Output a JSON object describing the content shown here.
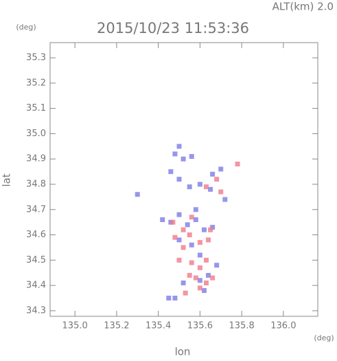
{
  "chart_data": {
    "type": "scatter",
    "header": "ALT(km)  2.0",
    "title": "2015/10/23  11:53:36",
    "y_unit": "(deg)",
    "x_unit": "(deg)",
    "y_label": "lat",
    "x_label": "lon",
    "xlim": [
      134.881,
      136.165
    ],
    "ylim": [
      34.278,
      35.36
    ],
    "xticks": [
      {
        "value": 135,
        "label": "135.0"
      },
      135.2,
      135.4,
      135.6,
      135.8,
      {
        "value": 136,
        "label": "136.0"
      }
    ],
    "yticks": [
      34.3,
      34.4,
      34.5,
      34.6,
      34.7,
      34.8,
      34.9,
      {
        "value": 35,
        "label": "35.0"
      },
      35.1,
      35.2,
      35.3
    ],
    "series": [
      {
        "color": "#7c7ce6",
        "x": [
          135.5,
          135.48,
          135.52,
          135.56,
          135.46,
          135.5,
          135.55,
          135.3,
          135.66,
          135.7,
          135.65,
          135.72,
          135.42,
          135.46,
          135.5,
          135.54,
          135.58,
          135.62,
          135.66,
          135.5,
          135.56,
          135.6,
          135.64,
          135.6,
          135.52,
          135.62,
          135.48,
          135.45,
          135.68,
          135.58,
          135.6
        ],
        "values": [
          34.95,
          34.92,
          34.9,
          34.91,
          34.85,
          34.82,
          34.79,
          34.76,
          34.84,
          34.86,
          34.78,
          34.74,
          34.66,
          34.65,
          34.68,
          34.64,
          34.66,
          34.62,
          34.63,
          34.58,
          34.56,
          34.52,
          34.44,
          34.42,
          34.41,
          34.38,
          34.35,
          34.35,
          34.48,
          34.7,
          34.8
        ]
      },
      {
        "color": "#f07a8a",
        "x": [
          135.78,
          135.68,
          135.63,
          135.7,
          135.47,
          135.52,
          135.55,
          135.48,
          135.6,
          135.64,
          135.52,
          135.5,
          135.56,
          135.6,
          135.63,
          135.55,
          135.58,
          135.66,
          135.63,
          135.6,
          135.53,
          135.65,
          135.56
        ],
        "values": [
          34.88,
          34.82,
          34.79,
          34.77,
          34.65,
          34.62,
          34.6,
          34.59,
          34.57,
          34.58,
          34.55,
          34.5,
          34.49,
          34.47,
          34.5,
          34.44,
          34.43,
          34.43,
          34.41,
          34.39,
          34.37,
          34.62,
          34.67
        ]
      }
    ]
  }
}
